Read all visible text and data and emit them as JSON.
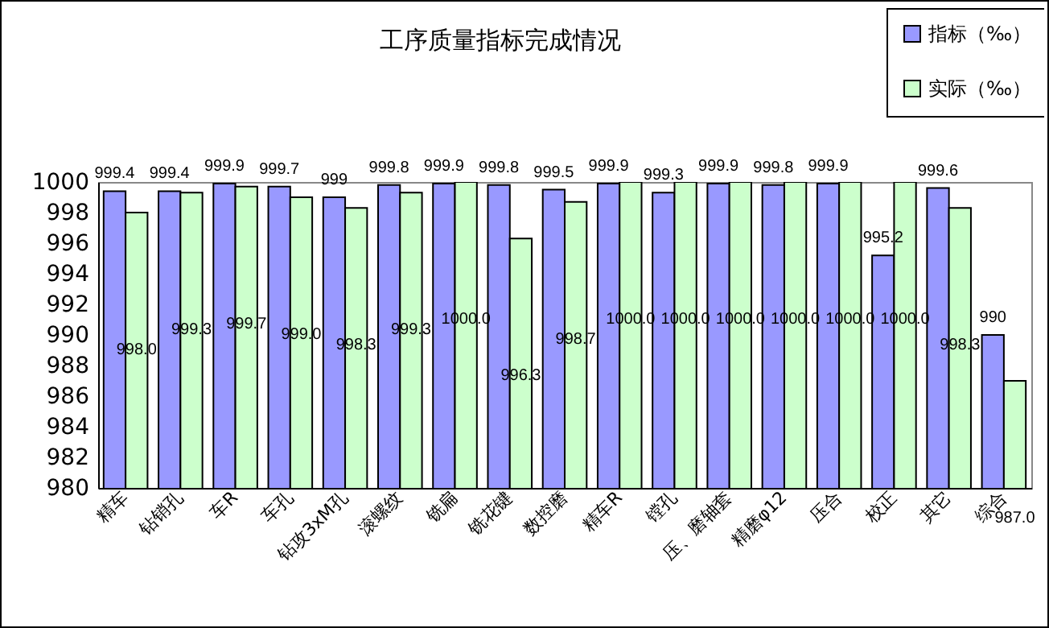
{
  "chart_data": {
    "type": "bar",
    "title": "工序质量指标完成情况",
    "categories": [
      "精车",
      "钻销孔",
      "车R",
      "车孔",
      "钻攻3xM孔",
      "滚螺纹",
      "铣扁",
      "铣花键",
      "数控磨",
      "精车R",
      "镗孔",
      "压、磨轴套",
      "精磨φ12",
      "压合",
      "校正",
      "其它",
      "综合"
    ],
    "series": [
      {
        "name": "指标（‰）",
        "color": "#9999ff",
        "values": [
          999.4,
          999.4,
          999.9,
          999.7,
          999,
          999.8,
          999.9,
          999.8,
          999.5,
          999.9,
          999.3,
          999.9,
          999.8,
          999.9,
          995.2,
          999.6,
          990
        ],
        "value_labels": [
          "999.4",
          "999.4",
          "999.9",
          "999.7",
          "999",
          "999.8",
          "999.9",
          "999.8",
          "999.5",
          "999.9",
          "999.3",
          "999.9",
          "999.8",
          "999.9",
          "995.2",
          "999.6",
          "990"
        ]
      },
      {
        "name": "实际（‰）",
        "color": "#ccffcc",
        "values": [
          998.0,
          999.3,
          999.7,
          999.0,
          998.3,
          999.3,
          1000.0,
          996.3,
          998.7,
          1000.0,
          1000.0,
          1000.0,
          1000.0,
          1000.0,
          1000.0,
          998.3,
          987.0
        ],
        "value_labels": [
          "998.0",
          "999.3",
          "999.7",
          "999.0",
          "998.3",
          "999.3",
          "1000.0",
          "996.3",
          "998.7",
          "1000.0",
          "1000.0",
          "1000.0",
          "1000.0",
          "1000.0",
          "1000.0",
          "998.3",
          "987.0"
        ]
      }
    ],
    "ylim": [
      980,
      1000
    ],
    "yticks": [
      980,
      982,
      984,
      986,
      988,
      990,
      992,
      994,
      996,
      998,
      1000
    ],
    "grid": false,
    "legend": "top right"
  }
}
